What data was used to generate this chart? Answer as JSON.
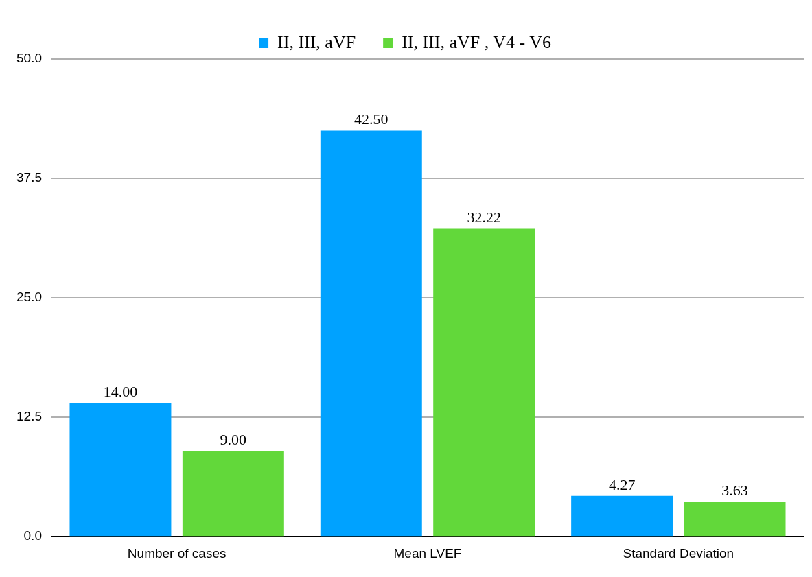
{
  "chart_data": {
    "type": "bar",
    "categories": [
      "Number of cases",
      "Mean LVEF",
      "Standard Deviation"
    ],
    "series": [
      {
        "name": "II, III, aVF",
        "color": "#00a2ff",
        "values": [
          14.0,
          42.5,
          4.27
        ],
        "value_labels": [
          "14.00",
          "42.50",
          "4.27"
        ]
      },
      {
        "name": "II, III, aVF , V4 - V6",
        "color": "#62d83a",
        "values": [
          9.0,
          32.22,
          3.63
        ],
        "value_labels": [
          "9.00",
          "32.22",
          "3.63"
        ]
      }
    ],
    "ylim": [
      0,
      50
    ],
    "yticks": [
      {
        "value": 0,
        "label": "0.0"
      },
      {
        "value": 12.5,
        "label": "12.5"
      },
      {
        "value": 25,
        "label": "25.0"
      },
      {
        "value": 37.5,
        "label": "37.5"
      },
      {
        "value": 50,
        "label": "50.0"
      }
    ],
    "grid": "y",
    "legend": "top"
  }
}
